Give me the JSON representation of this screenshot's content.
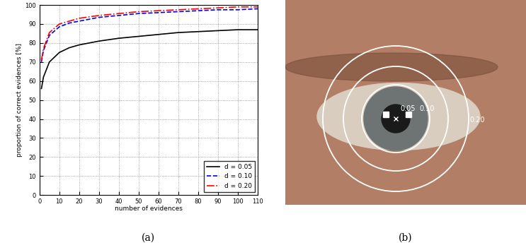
{
  "chart_data": {
    "type": "line",
    "xlabel": "number of evidences",
    "ylabel": "proportion of correct evidences [%]",
    "caption": "(a)",
    "x": [
      1,
      2,
      5,
      10,
      15,
      20,
      30,
      40,
      50,
      60,
      70,
      80,
      90,
      100,
      110
    ],
    "xlim": [
      0,
      110
    ],
    "xticks": [
      0,
      10,
      20,
      30,
      40,
      50,
      60,
      70,
      80,
      90,
      100,
      110
    ],
    "ylim": [
      0,
      100
    ],
    "yticks": [
      0,
      10,
      20,
      30,
      40,
      50,
      60,
      70,
      80,
      90,
      100
    ],
    "grid": true,
    "legend": "lower right",
    "series": [
      {
        "name": "d = 0.05",
        "color": "#000000",
        "line_style": "solid",
        "values": [
          56,
          62,
          70,
          75,
          77.5,
          79,
          81,
          82.5,
          83.5,
          84.5,
          85.5,
          86,
          86.5,
          87,
          87
        ]
      },
      {
        "name": "d = 0.10",
        "color": "#0000ff",
        "line_style": "dashed",
        "values": [
          70,
          76,
          84,
          88.5,
          90.5,
          91.5,
          93.5,
          94.5,
          95.5,
          96,
          96.5,
          97,
          97.5,
          97.5,
          98
        ]
      },
      {
        "name": "d = 0.20",
        "color": "#ff0000",
        "line_style": "dashdot",
        "values": [
          71,
          77,
          85.5,
          90,
          91.5,
          93,
          94.5,
          95.5,
          96.5,
          97,
          97.5,
          98,
          98.5,
          99,
          99
        ]
      }
    ]
  },
  "image_panel": {
    "caption": "(b)",
    "circle_labels": [
      "0.05",
      "0.10",
      "0.20"
    ]
  }
}
